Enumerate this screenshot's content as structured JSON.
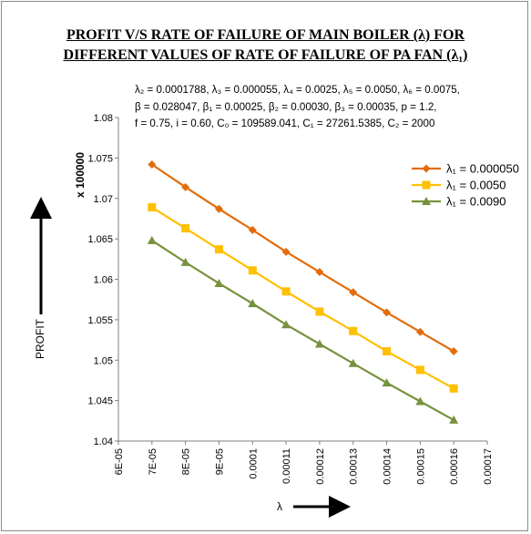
{
  "chart_data": {
    "type": "line",
    "title_line1": "PROFIT V/S RATE OF FAILURE OF MAIN BOILER (λ) FOR",
    "title_line2": "DIFFERENT VALUES OF RATE  OF FAILURE OF PA FAN (λ₁)",
    "params_line1": "λ₂ = 0.0001788, λ₃ = 0.000055, λ₄ = 0.0025, λ₅ = 0.0050, λ₆ = 0.0075,",
    "params_line2": "β = 0.028047, β₁ = 0.00025, β₂ =  0.00030, β₃ =  0.00035, p =  1.2,",
    "params_line3": "f = 0.75, i = 0.60, C₀ = 109589.041, C₁ = 27261.5385, C₂ = 2000",
    "xlabel": "λ",
    "ylabel": "PROFIT",
    "yscale_label": "x 100000",
    "xlim": [
      6e-05,
      0.00017
    ],
    "ylim": [
      1.04,
      1.08
    ],
    "x_ticks": [
      "6E-05",
      "7E-05",
      "8E-05",
      "9E-05",
      "0.0001",
      "0.00011",
      "0.00012",
      "0.00013",
      "0.00014",
      "0.00015",
      "0.00016",
      "0.00017"
    ],
    "y_ticks": [
      "1.04",
      "1.045",
      "1.05",
      "1.055",
      "1.06",
      "1.065",
      "1.07",
      "1.075",
      "1.08"
    ],
    "x": [
      7e-05,
      8e-05,
      9e-05,
      0.0001,
      0.00011,
      0.00012,
      0.00013,
      0.00014,
      0.00015,
      0.00016
    ],
    "legend_position": "right",
    "grid": false,
    "series": [
      {
        "name": "λ₁ = 0.000050",
        "color": "#E36C0A",
        "marker": "diamond",
        "values": [
          1.0742,
          1.0714,
          1.0687,
          1.0661,
          1.0634,
          1.0609,
          1.0584,
          1.0559,
          1.0535,
          1.0511
        ]
      },
      {
        "name": "λ₁ = 0.0050",
        "color": "#FFC000",
        "marker": "square",
        "values": [
          1.0689,
          1.0663,
          1.0637,
          1.0611,
          1.0585,
          1.056,
          1.0536,
          1.0511,
          1.0488,
          1.0465
        ]
      },
      {
        "name": "λ₁ = 0.0090",
        "color": "#76923C",
        "marker": "triangle",
        "values": [
          1.0648,
          1.0621,
          1.0595,
          1.057,
          1.0544,
          1.052,
          1.0496,
          1.0472,
          1.0449,
          1.0426
        ]
      }
    ]
  }
}
